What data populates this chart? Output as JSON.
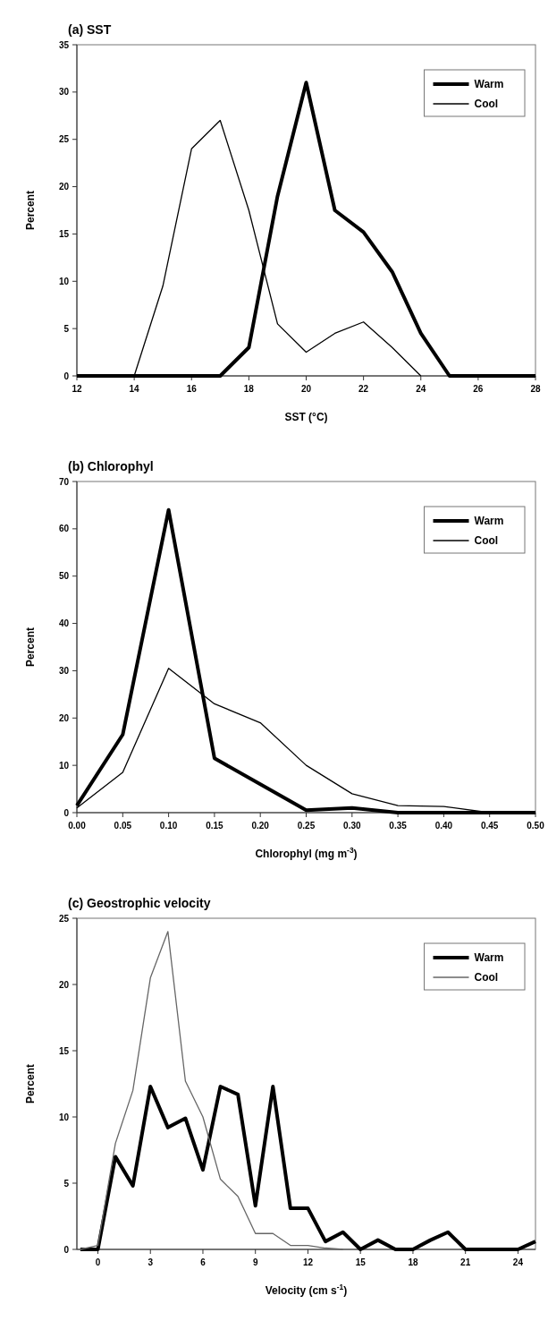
{
  "chart_data": [
    {
      "type": "line",
      "title": "(a) SST",
      "xlabel": "SST (°C)",
      "ylabel": "Percent",
      "xlim": [
        12,
        28
      ],
      "xticks": [
        12,
        14,
        16,
        18,
        20,
        22,
        24,
        26,
        28
      ],
      "ylim": [
        0,
        35
      ],
      "yticks": [
        0,
        5,
        10,
        15,
        20,
        25,
        30,
        35
      ],
      "legend": "top right",
      "grid": false,
      "x": [
        12,
        13,
        14,
        15,
        16,
        17,
        18,
        19,
        20,
        21,
        22,
        23,
        24,
        25,
        26,
        27,
        28
      ],
      "series": [
        {
          "name": "Warm",
          "color": "#000000",
          "values": [
            0,
            0,
            0,
            0,
            0,
            0,
            3,
            19,
            31,
            17.5,
            15.2,
            11,
            4.5,
            0,
            0,
            0,
            0
          ]
        },
        {
          "name": "Cool",
          "color": "#000000",
          "values": [
            0,
            0,
            0,
            9.5,
            24,
            27,
            17.5,
            5.5,
            2.5,
            4.5,
            5.7,
            3,
            0,
            null,
            null,
            null,
            null
          ]
        }
      ]
    },
    {
      "type": "line",
      "title": "(b) Chlorophyl",
      "xlabel": "Chlorophyl (mg m$^{-3}$)",
      "ylabel": "Percent",
      "xlim": [
        0,
        0.5
      ],
      "xticks": [
        {
          "value": 0,
          "label": "0.00"
        },
        {
          "value": 0.05,
          "label": "0.05"
        },
        {
          "value": 0.1,
          "label": "0.10"
        },
        {
          "value": 0.15,
          "label": "0.15"
        },
        {
          "value": 0.2,
          "label": "0.20"
        },
        {
          "value": 0.25,
          "label": "0.25"
        },
        {
          "value": 0.3,
          "label": "0.30"
        },
        {
          "value": 0.35,
          "label": "0.35"
        },
        {
          "value": 0.4,
          "label": "0.40"
        },
        {
          "value": 0.45,
          "label": "0.45"
        },
        {
          "value": 0.5,
          "label": "0.50"
        }
      ],
      "ylim": [
        0,
        70
      ],
      "yticks": [
        0,
        10,
        20,
        30,
        40,
        50,
        60,
        70
      ],
      "legend": "top right",
      "grid": false,
      "x": [
        0,
        0.05,
        0.1,
        0.15,
        0.2,
        0.25,
        0.3,
        0.35,
        0.4,
        0.45,
        0.5
      ],
      "series": [
        {
          "name": "Warm",
          "color": "#000000",
          "values": [
            1.5,
            16.5,
            64,
            11.5,
            6,
            0.5,
            1,
            0,
            0,
            0,
            0
          ]
        },
        {
          "name": "Cool",
          "color": "#000000",
          "values": [
            1,
            8.5,
            30.5,
            23,
            19,
            10,
            4,
            1.5,
            1.3,
            0,
            0
          ]
        }
      ]
    },
    {
      "type": "line",
      "title": "(c) Geostrophic velocity",
      "xlabel": "Velocity (cm s$^{-1}$)",
      "ylabel": "Percent",
      "xlim": [
        -1.2,
        25
      ],
      "xticks": [
        0,
        3,
        6,
        9,
        12,
        15,
        18,
        21,
        24
      ],
      "ylim": [
        0,
        25
      ],
      "yticks": [
        0,
        5,
        10,
        15,
        20,
        25
      ],
      "legend": "top right",
      "grid": false,
      "x": [
        -1,
        0,
        1,
        2,
        3,
        4,
        5,
        6,
        7,
        8,
        9,
        10,
        11,
        12,
        13,
        14,
        15,
        16,
        17,
        18,
        19,
        20,
        21,
        22,
        23,
        24,
        25
      ],
      "series": [
        {
          "name": "Warm",
          "color": "#000000",
          "values": [
            0,
            0,
            7,
            4.8,
            12.3,
            9.2,
            9.9,
            6,
            12.3,
            11.7,
            3.3,
            12.3,
            3.1,
            3.1,
            0.6,
            1.3,
            0,
            0.7,
            0,
            0,
            0.7,
            1.3,
            0,
            0,
            0,
            0,
            0.6
          ]
        },
        {
          "name": "Cool",
          "color": "#666666",
          "values": [
            0,
            0.3,
            8,
            12,
            20.5,
            24,
            12.7,
            10,
            5.3,
            4,
            1.2,
            1.2,
            0.3,
            0.3,
            0.1,
            0,
            null,
            null,
            null,
            null,
            null,
            null,
            null,
            null,
            null,
            null,
            null
          ]
        }
      ]
    }
  ]
}
